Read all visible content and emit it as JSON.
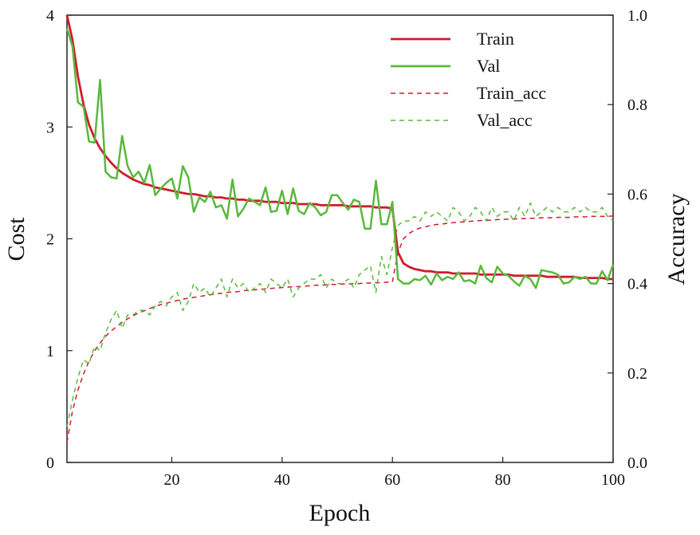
{
  "chart_data": {
    "type": "line",
    "xlabel": "Epoch",
    "ylabel_left": "Cost",
    "ylabel_right": "Accuracy",
    "xlim": [
      1,
      100
    ],
    "ylim_left": [
      0,
      4
    ],
    "ylim_right": [
      0.0,
      1.0
    ],
    "x_ticks": [
      20,
      40,
      60,
      80,
      100
    ],
    "y_left_ticks": [
      "0",
      "1",
      "2",
      "3",
      "4"
    ],
    "y_right_ticks": [
      "0.0",
      "0.2",
      "0.4",
      "0.6",
      "0.8",
      "1.0"
    ],
    "grid": false,
    "legend_position": "top-right",
    "series": [
      {
        "name": "Train",
        "axis": "left",
        "style": "solid",
        "color": "#d01c2b",
        "values": [
          4.25,
          3.78,
          3.45,
          3.2,
          3.02,
          2.9,
          2.81,
          2.74,
          2.68,
          2.63,
          2.59,
          2.56,
          2.53,
          2.51,
          2.49,
          2.48,
          2.46,
          2.45,
          2.44,
          2.43,
          2.42,
          2.41,
          2.4,
          2.4,
          2.39,
          2.38,
          2.38,
          2.37,
          2.37,
          2.36,
          2.36,
          2.35,
          2.35,
          2.34,
          2.34,
          2.34,
          2.33,
          2.33,
          2.33,
          2.32,
          2.32,
          2.32,
          2.31,
          2.31,
          2.31,
          2.31,
          2.3,
          2.3,
          2.3,
          2.3,
          2.3,
          2.29,
          2.29,
          2.29,
          2.29,
          2.29,
          2.28,
          2.28,
          2.28,
          2.27,
          1.88,
          1.78,
          1.75,
          1.73,
          1.72,
          1.71,
          1.71,
          1.7,
          1.7,
          1.7,
          1.69,
          1.69,
          1.69,
          1.69,
          1.69,
          1.68,
          1.68,
          1.68,
          1.68,
          1.68,
          1.68,
          1.67,
          1.67,
          1.67,
          1.67,
          1.67,
          1.67,
          1.66,
          1.66,
          1.66,
          1.66,
          1.66,
          1.66,
          1.65,
          1.65,
          1.65,
          1.65,
          1.65,
          1.64,
          1.64
        ]
      },
      {
        "name": "Val",
        "axis": "left",
        "style": "solid",
        "color": "#5ab83c",
        "values": [
          3.88,
          3.72,
          3.22,
          3.18,
          2.87,
          2.86,
          3.42,
          2.6,
          2.55,
          2.54,
          2.92,
          2.65,
          2.55,
          2.6,
          2.5,
          2.66,
          2.39,
          2.45,
          2.5,
          2.54,
          2.36,
          2.65,
          2.55,
          2.24,
          2.37,
          2.33,
          2.42,
          2.28,
          2.3,
          2.18,
          2.53,
          2.2,
          2.27,
          2.36,
          2.33,
          2.3,
          2.46,
          2.24,
          2.25,
          2.43,
          2.22,
          2.45,
          2.25,
          2.22,
          2.32,
          2.28,
          2.21,
          2.24,
          2.39,
          2.39,
          2.32,
          2.26,
          2.35,
          2.33,
          2.09,
          2.09,
          2.52,
          2.13,
          2.13,
          2.33,
          1.64,
          1.6,
          1.6,
          1.64,
          1.63,
          1.67,
          1.59,
          1.69,
          1.63,
          1.66,
          1.64,
          1.7,
          1.62,
          1.63,
          1.6,
          1.76,
          1.65,
          1.61,
          1.75,
          1.69,
          1.67,
          1.62,
          1.58,
          1.67,
          1.64,
          1.56,
          1.72,
          1.71,
          1.7,
          1.68,
          1.6,
          1.61,
          1.66,
          1.64,
          1.66,
          1.6,
          1.6,
          1.71,
          1.63,
          1.77
        ]
      },
      {
        "name": "Train_acc",
        "axis": "right",
        "style": "dashed",
        "color": "#d01c2b",
        "values": [
          0.045,
          0.115,
          0.162,
          0.198,
          0.227,
          0.249,
          0.267,
          0.282,
          0.294,
          0.304,
          0.313,
          0.321,
          0.328,
          0.334,
          0.339,
          0.344,
          0.349,
          0.353,
          0.356,
          0.359,
          0.362,
          0.365,
          0.367,
          0.369,
          0.371,
          0.373,
          0.375,
          0.377,
          0.378,
          0.38,
          0.381,
          0.382,
          0.384,
          0.385,
          0.386,
          0.387,
          0.388,
          0.389,
          0.39,
          0.391,
          0.392,
          0.393,
          0.393,
          0.394,
          0.395,
          0.396,
          0.396,
          0.397,
          0.398,
          0.398,
          0.399,
          0.399,
          0.4,
          0.4,
          0.401,
          0.401,
          0.402,
          0.402,
          0.403,
          0.403,
          0.47,
          0.5,
          0.512,
          0.519,
          0.524,
          0.527,
          0.53,
          0.532,
          0.533,
          0.535,
          0.536,
          0.537,
          0.538,
          0.539,
          0.54,
          0.541,
          0.541,
          0.542,
          0.543,
          0.543,
          0.544,
          0.544,
          0.545,
          0.545,
          0.546,
          0.546,
          0.547,
          0.547,
          0.547,
          0.548,
          0.548,
          0.548,
          0.549,
          0.549,
          0.549,
          0.55,
          0.55,
          0.55,
          0.55,
          0.551
        ]
      },
      {
        "name": "Val_acc",
        "axis": "right",
        "style": "dashed",
        "color": "#5ab83c",
        "values": [
          0.08,
          0.14,
          0.19,
          0.23,
          0.22,
          0.26,
          0.25,
          0.29,
          0.32,
          0.34,
          0.3,
          0.33,
          0.33,
          0.34,
          0.34,
          0.33,
          0.35,
          0.36,
          0.35,
          0.37,
          0.38,
          0.34,
          0.36,
          0.4,
          0.38,
          0.39,
          0.37,
          0.39,
          0.41,
          0.37,
          0.41,
          0.39,
          0.4,
          0.38,
          0.39,
          0.4,
          0.38,
          0.41,
          0.4,
          0.39,
          0.41,
          0.37,
          0.39,
          0.4,
          0.41,
          0.41,
          0.42,
          0.39,
          0.41,
          0.4,
          0.4,
          0.41,
          0.39,
          0.42,
          0.43,
          0.44,
          0.38,
          0.46,
          0.42,
          0.48,
          0.53,
          0.54,
          0.54,
          0.55,
          0.54,
          0.56,
          0.55,
          0.56,
          0.55,
          0.54,
          0.57,
          0.56,
          0.54,
          0.55,
          0.57,
          0.56,
          0.54,
          0.57,
          0.55,
          0.56,
          0.56,
          0.54,
          0.57,
          0.55,
          0.58,
          0.55,
          0.56,
          0.57,
          0.56,
          0.57,
          0.56,
          0.56,
          0.57,
          0.56,
          0.57,
          0.56,
          0.56,
          0.57,
          0.55,
          0.54
        ]
      }
    ]
  }
}
